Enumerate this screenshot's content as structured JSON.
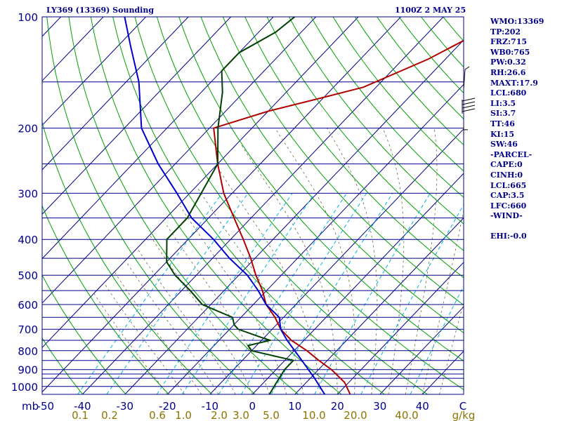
{
  "header": {
    "station": "LY369 (13369) Sounding",
    "time": "1100Z  2 MAY 25"
  },
  "stats": [
    "WMO:13369",
    "TP:202",
    "FRZ:715",
    "WB0:765",
    "PW:0.32",
    "RH:26.6",
    "MAXT:17.9",
    "LCL:680",
    "LI:3.5",
    "SI:3.7",
    "TT:46",
    "KI:15",
    "SW:46",
    "-PARCEL-",
    "CAPE:0",
    "CINH:0",
    "LCL:665",
    "CAP:3.5",
    "LFC:660",
    "-WIND-",
    "",
    "EHI:-0.0"
  ],
  "colors": {
    "axis_text": "#00008b",
    "isobar": "#00008b",
    "isotherm": "#00008b",
    "dry_adiabat": "#00a000",
    "mixing_ratio": "#00b4d8",
    "moist_adiabat": "#6b6b3a",
    "temperature": "#b00000",
    "dewpoint": "#004000",
    "parcel": "#0000cd",
    "mixing_label": "#8b7500"
  },
  "chart_data": {
    "type": "line",
    "title": "LY369 (13369) Sounding",
    "diagram": "skew-T log-p",
    "x_unit_label": "C",
    "y_unit_label": "mb",
    "mixing_unit_label": "g/kg",
    "temp_ticks": [
      "-50",
      "-40",
      "-30",
      "-20",
      "-10",
      "0",
      "10",
      "20",
      "30",
      "40"
    ],
    "pressure_ticks": [
      "100",
      "200",
      "300",
      "400",
      "500",
      "600",
      "700",
      "800",
      "900",
      "1000"
    ],
    "isobar_levels_hpa": [
      100,
      150,
      200,
      250,
      300,
      350,
      400,
      450,
      500,
      550,
      600,
      650,
      700,
      750,
      800,
      850,
      900,
      925,
      950,
      1000,
      1050
    ],
    "mixing_ratio_labels": [
      "0.1",
      "0.2",
      "0.6",
      "1.0",
      "2.0",
      "3.0",
      "5.0",
      "10.0",
      "20.0",
      "40.0"
    ],
    "mixing_ratio_values": [
      0.1,
      0.2,
      0.6,
      1.0,
      2.0,
      3.0,
      5.0,
      10.0,
      20.0,
      40.0
    ],
    "series": [
      {
        "key": "temperature",
        "points": [
          [
            1050,
            23
          ],
          [
            975,
            19
          ],
          [
            900,
            13
          ],
          [
            850,
            8
          ],
          [
            800,
            3
          ],
          [
            750,
            -3
          ],
          [
            700,
            -8
          ],
          [
            650,
            -12
          ],
          [
            600,
            -17
          ],
          [
            550,
            -21
          ],
          [
            500,
            -26
          ],
          [
            450,
            -31
          ],
          [
            400,
            -37
          ],
          [
            350,
            -44
          ],
          [
            300,
            -52
          ],
          [
            250,
            -60
          ],
          [
            200,
            -69
          ],
          [
            180,
            -60
          ],
          [
            165,
            -50
          ],
          [
            155,
            -43
          ],
          [
            130,
            -34
          ],
          [
            110,
            -28
          ],
          [
            100,
            -27
          ]
        ]
      },
      {
        "key": "dewpoint",
        "points": [
          [
            1050,
            4
          ],
          [
            975,
            3
          ],
          [
            900,
            2
          ],
          [
            850,
            2
          ],
          [
            800,
            -10
          ],
          [
            775,
            -12
          ],
          [
            750,
            -8
          ],
          [
            735,
            -11
          ],
          [
            700,
            -18
          ],
          [
            680,
            -20
          ],
          [
            650,
            -22
          ],
          [
            600,
            -32
          ],
          [
            550,
            -38
          ],
          [
            500,
            -45
          ],
          [
            460,
            -50
          ],
          [
            400,
            -55
          ],
          [
            350,
            -55
          ],
          [
            250,
            -60
          ],
          [
            200,
            -68
          ],
          [
            160,
            -75
          ],
          [
            140,
            -80
          ],
          [
            125,
            -80
          ],
          [
            110,
            -76
          ],
          [
            100,
            -75
          ]
        ]
      },
      {
        "key": "parcel",
        "points": [
          [
            1050,
            17
          ],
          [
            950,
            11
          ],
          [
            850,
            4
          ],
          [
            750,
            -4
          ],
          [
            700,
            -8
          ],
          [
            650,
            -11
          ],
          [
            600,
            -17
          ],
          [
            550,
            -22
          ],
          [
            500,
            -28
          ],
          [
            450,
            -36
          ],
          [
            400,
            -44
          ],
          [
            350,
            -54
          ],
          [
            300,
            -63
          ],
          [
            250,
            -74
          ],
          [
            200,
            -86
          ],
          [
            150,
            -97
          ],
          [
            120,
            -107
          ],
          [
            100,
            -115
          ]
        ]
      }
    ],
    "wind_barbs_hpa": [
      140,
      175,
      202
    ]
  }
}
